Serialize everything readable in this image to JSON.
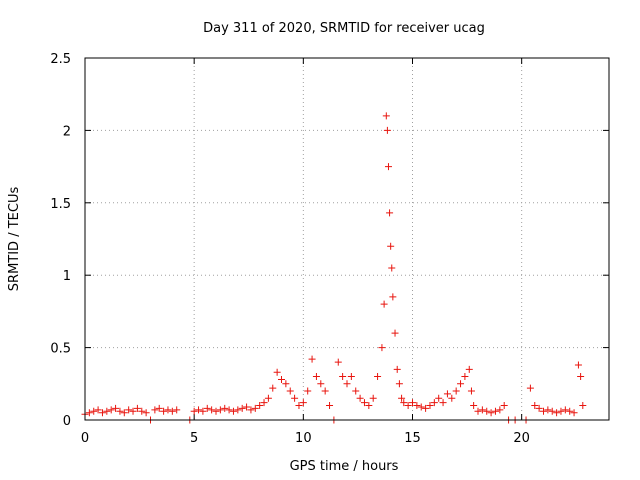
{
  "chart_data": {
    "type": "scatter",
    "title": "Day 311 of 2020, SRMTID for receiver ucag",
    "xlabel": "GPS time / hours",
    "ylabel": "SRMTID / TECUs",
    "xlim": [
      0,
      24
    ],
    "ylim": [
      0,
      2.5
    ],
    "xticks": [
      0,
      5,
      10,
      15,
      20
    ],
    "xtick_labels": [
      "0",
      "5",
      "10",
      "15",
      "20"
    ],
    "yticks": [
      0,
      0.5,
      1,
      1.5,
      2,
      2.5
    ],
    "ytick_labels": [
      "0",
      "0.5",
      "1",
      "1.5",
      "2",
      "2.5"
    ],
    "grid": true,
    "marker": "+",
    "color": "#e8150e",
    "series": [
      {
        "name": "SRMTID",
        "x": [
          0.0,
          0.2,
          0.4,
          0.6,
          0.8,
          1.0,
          1.2,
          1.4,
          1.6,
          1.8,
          2.0,
          2.2,
          2.4,
          2.6,
          2.8,
          3.0,
          3.2,
          3.4,
          3.6,
          3.8,
          4.0,
          4.2,
          4.8,
          5.0,
          5.2,
          5.4,
          5.6,
          5.8,
          6.0,
          6.2,
          6.4,
          6.6,
          6.8,
          7.0,
          7.2,
          7.4,
          7.6,
          7.8,
          8.0,
          8.2,
          8.4,
          8.6,
          8.8,
          9.0,
          9.2,
          9.4,
          9.6,
          9.8,
          10.0,
          10.2,
          10.4,
          10.6,
          10.8,
          11.0,
          11.2,
          11.4,
          11.6,
          11.8,
          12.0,
          12.2,
          12.4,
          12.6,
          12.8,
          13.0,
          13.2,
          13.4,
          13.6,
          13.7,
          13.8,
          13.85,
          13.9,
          13.95,
          14.0,
          14.05,
          14.1,
          14.2,
          14.3,
          14.4,
          14.5,
          14.6,
          14.8,
          15.0,
          15.2,
          15.4,
          15.6,
          15.8,
          16.0,
          16.2,
          16.4,
          16.6,
          16.8,
          17.0,
          17.2,
          17.4,
          17.6,
          17.7,
          17.8,
          18.0,
          18.2,
          18.4,
          18.6,
          18.8,
          19.0,
          19.2,
          19.4,
          19.7,
          20.2,
          20.4,
          20.6,
          20.8,
          21.0,
          21.2,
          21.4,
          21.6,
          21.8,
          22.0,
          22.2,
          22.4,
          22.6,
          22.7,
          22.8
        ],
        "y": [
          0.04,
          0.05,
          0.06,
          0.07,
          0.05,
          0.06,
          0.07,
          0.08,
          0.06,
          0.05,
          0.07,
          0.06,
          0.08,
          0.06,
          0.05,
          0.0,
          0.07,
          0.08,
          0.06,
          0.07,
          0.06,
          0.07,
          0.0,
          0.06,
          0.07,
          0.06,
          0.08,
          0.07,
          0.06,
          0.07,
          0.08,
          0.07,
          0.06,
          0.07,
          0.08,
          0.09,
          0.07,
          0.08,
          0.1,
          0.12,
          0.15,
          0.22,
          0.33,
          0.28,
          0.25,
          0.2,
          0.15,
          0.1,
          0.12,
          0.2,
          0.42,
          0.3,
          0.25,
          0.2,
          0.1,
          0.0,
          0.4,
          0.3,
          0.25,
          0.3,
          0.2,
          0.15,
          0.12,
          0.1,
          0.15,
          0.3,
          0.5,
          0.8,
          2.1,
          2.0,
          1.75,
          1.43,
          1.2,
          1.05,
          0.85,
          0.6,
          0.35,
          0.25,
          0.15,
          0.12,
          0.1,
          0.12,
          0.1,
          0.09,
          0.08,
          0.1,
          0.12,
          0.15,
          0.12,
          0.18,
          0.15,
          0.2,
          0.25,
          0.3,
          0.35,
          0.2,
          0.1,
          0.06,
          0.07,
          0.06,
          0.05,
          0.06,
          0.07,
          0.1,
          0.0,
          0.0,
          0.0,
          0.22,
          0.1,
          0.08,
          0.06,
          0.07,
          0.06,
          0.05,
          0.06,
          0.07,
          0.06,
          0.05,
          0.38,
          0.3,
          0.1
        ]
      }
    ]
  }
}
